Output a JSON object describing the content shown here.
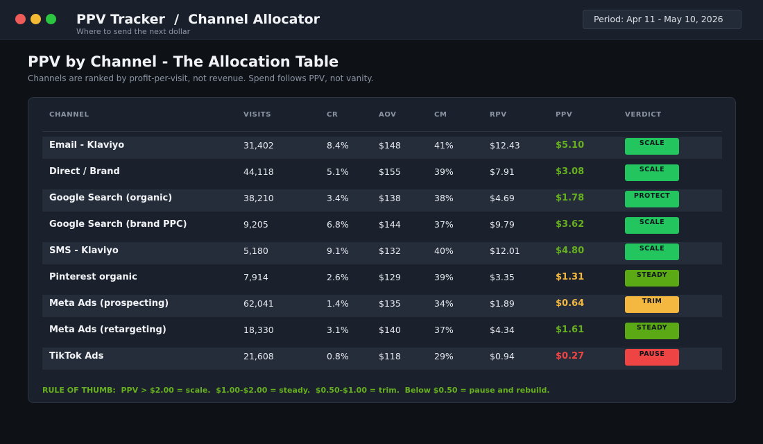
{
  "app": {
    "title": "PPV Tracker  /  Channel Allocator",
    "subtitle": "Where to send the next dollar",
    "period": "Period: Apr 11 - May 10, 2026"
  },
  "page": {
    "title": "PPV by Channel - The Allocation Table",
    "description": "Channels are ranked by profit-per-visit, not revenue. Spend follows PPV, not vanity."
  },
  "colors": {
    "scale": "#22c55e",
    "protect": "#22c55e",
    "steady": "#5aa915",
    "trim": "#f4b740",
    "pause": "#ef4444",
    "ppv_green": "#66b01f",
    "ppv_amber": "#f4b740",
    "ppv_red": "#ef4444"
  },
  "table": {
    "headers": [
      "CHANNEL",
      "VISITS",
      "CR",
      "AOV",
      "CM",
      "RPV",
      "PPV",
      "VERDICT"
    ],
    "rows": [
      {
        "channel": "Email - Klaviyo",
        "visits": "31,402",
        "cr": "8.4%",
        "aov": "$148",
        "cm": "41%",
        "rpv": "$12.43",
        "ppv": "$5.10",
        "ppv_tone": "green",
        "verdict": "SCALE",
        "verdict_tone": "scale"
      },
      {
        "channel": "Direct / Brand",
        "visits": "44,118",
        "cr": "5.1%",
        "aov": "$155",
        "cm": "39%",
        "rpv": "$7.91",
        "ppv": "$3.08",
        "ppv_tone": "green",
        "verdict": "SCALE",
        "verdict_tone": "scale"
      },
      {
        "channel": "Google Search (organic)",
        "visits": "38,210",
        "cr": "3.4%",
        "aov": "$138",
        "cm": "38%",
        "rpv": "$4.69",
        "ppv": "$1.78",
        "ppv_tone": "green",
        "verdict": "PROTECT",
        "verdict_tone": "protect"
      },
      {
        "channel": "Google Search (brand PPC)",
        "visits": "9,205",
        "cr": "6.8%",
        "aov": "$144",
        "cm": "37%",
        "rpv": "$9.79",
        "ppv": "$3.62",
        "ppv_tone": "green",
        "verdict": "SCALE",
        "verdict_tone": "scale"
      },
      {
        "channel": "SMS - Klaviyo",
        "visits": "5,180",
        "cr": "9.1%",
        "aov": "$132",
        "cm": "40%",
        "rpv": "$12.01",
        "ppv": "$4.80",
        "ppv_tone": "green",
        "verdict": "SCALE",
        "verdict_tone": "scale"
      },
      {
        "channel": "Pinterest organic",
        "visits": "7,914",
        "cr": "2.6%",
        "aov": "$129",
        "cm": "39%",
        "rpv": "$3.35",
        "ppv": "$1.31",
        "ppv_tone": "amber",
        "verdict": "STEADY",
        "verdict_tone": "steady"
      },
      {
        "channel": "Meta Ads (prospecting)",
        "visits": "62,041",
        "cr": "1.4%",
        "aov": "$135",
        "cm": "34%",
        "rpv": "$1.89",
        "ppv": "$0.64",
        "ppv_tone": "amber",
        "verdict": "TRIM",
        "verdict_tone": "trim"
      },
      {
        "channel": "Meta Ads (retargeting)",
        "visits": "18,330",
        "cr": "3.1%",
        "aov": "$140",
        "cm": "37%",
        "rpv": "$4.34",
        "ppv": "$1.61",
        "ppv_tone": "green",
        "verdict": "STEADY",
        "verdict_tone": "steady"
      },
      {
        "channel": "TikTok Ads",
        "visits": "21,608",
        "cr": "0.8%",
        "aov": "$118",
        "cm": "29%",
        "rpv": "$0.94",
        "ppv": "$0.27",
        "ppv_tone": "red",
        "verdict": "PAUSE",
        "verdict_tone": "pause"
      }
    ]
  },
  "rule_of_thumb": "RULE OF THUMB:  PPV > $2.00 = scale.  $1.00-$2.00 = steady.  $0.50-$1.00 = trim.  Below $0.50 = pause and rebuild."
}
